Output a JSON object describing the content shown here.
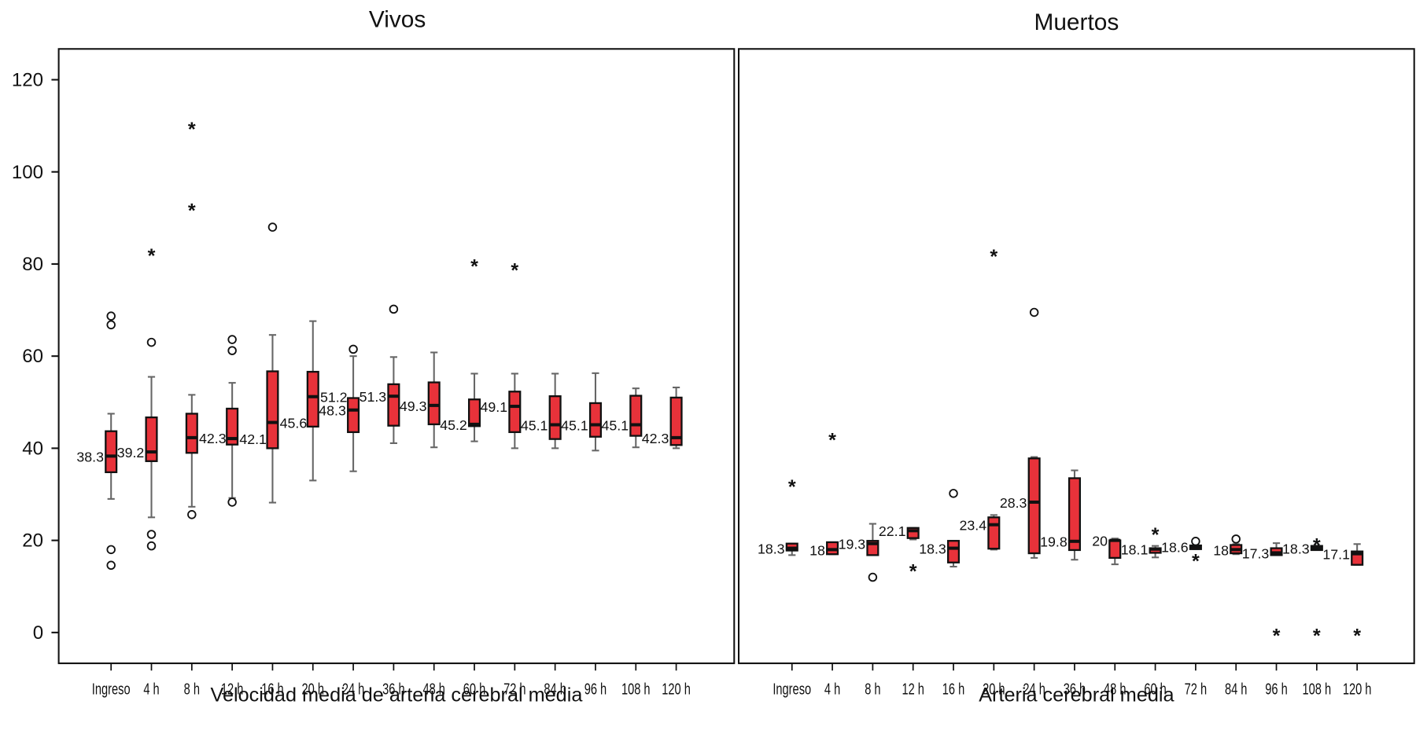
{
  "chart_data": [
    {
      "type": "box",
      "title": "Vivos",
      "xlabel": "Velocidad media de arteria cerebral media",
      "ylabel": "",
      "ylim": [
        -6,
        127
      ],
      "yticks": [
        0,
        20,
        40,
        60,
        80,
        100,
        120
      ],
      "grid": false,
      "box_color": "#e8323a",
      "categories": [
        "Ingreso",
        "4 h",
        "8 h",
        "12 h",
        "16 h",
        "20 h",
        "24 h",
        "36 h",
        "48 h",
        "60 h",
        "72 h",
        "84 h",
        "96 h",
        "108 h",
        "120 h"
      ],
      "boxes": [
        {
          "label": "38.3",
          "median": 38.3,
          "q1": 34.8,
          "q3": 43.7,
          "whisker_low": 29,
          "whisker_high": 47.5,
          "outliers_circle": [
            68.7,
            66.8,
            18,
            14.6
          ],
          "outliers_star": []
        },
        {
          "label": "39.2",
          "median": 39.2,
          "q1": 37.2,
          "q3": 46.7,
          "whisker_low": 25,
          "whisker_high": 55.5,
          "outliers_circle": [
            63,
            21.3,
            18.8
          ],
          "outliers_star": [
            82.5
          ]
        },
        {
          "label": "42.3",
          "median": 42.3,
          "q1": 39,
          "q3": 47.5,
          "whisker_low": 27.3,
          "whisker_high": 51.6,
          "outliers_circle": [
            25.6
          ],
          "outliers_star": [
            110,
            92.3
          ]
        },
        {
          "label": "42.1",
          "median": 42.1,
          "q1": 40.8,
          "q3": 48.6,
          "whisker_low": 29.2,
          "whisker_high": 54.2,
          "outliers_circle": [
            63.6,
            61.2,
            28.3
          ],
          "outliers_star": []
        },
        {
          "label": "45.6",
          "median": 45.6,
          "q1": 40,
          "q3": 56.7,
          "whisker_low": 28.2,
          "whisker_high": 64.6,
          "outliers_circle": [
            88
          ],
          "outliers_star": []
        },
        {
          "label": "51.2",
          "median": 51.2,
          "q1": 44.7,
          "q3": 56.6,
          "whisker_low": 33,
          "whisker_high": 67.6,
          "outliers_circle": [],
          "outliers_star": []
        },
        {
          "label": "48.3",
          "median": 48.3,
          "q1": 43.5,
          "q3": 50.9,
          "whisker_low": 35,
          "whisker_high": 60,
          "outliers_circle": [
            61.5
          ],
          "outliers_star": []
        },
        {
          "label": "51.3",
          "median": 51.3,
          "q1": 44.9,
          "q3": 53.9,
          "whisker_low": 41.1,
          "whisker_high": 59.8,
          "outliers_circle": [
            70.2
          ],
          "outliers_star": []
        },
        {
          "label": "49.3",
          "median": 49.3,
          "q1": 45.2,
          "q3": 54.3,
          "whisker_low": 40.2,
          "whisker_high": 60.8,
          "outliers_circle": [],
          "outliers_star": []
        },
        {
          "label": "45.2",
          "median": 45.2,
          "q1": 44.8,
          "q3": 50.6,
          "whisker_low": 41.5,
          "whisker_high": 56.2,
          "outliers_circle": [],
          "outliers_star": [
            80.2
          ]
        },
        {
          "label": "49.1",
          "median": 49.1,
          "q1": 43.5,
          "q3": 52.3,
          "whisker_low": 40,
          "whisker_high": 56.2,
          "outliers_circle": [],
          "outliers_star": [
            79.3
          ]
        },
        {
          "label": "45.1",
          "median": 45.1,
          "q1": 42,
          "q3": 51.3,
          "whisker_low": 40,
          "whisker_high": 56.2,
          "outliers_circle": [],
          "outliers_star": []
        },
        {
          "label": "45.1",
          "median": 45.1,
          "q1": 42.5,
          "q3": 49.8,
          "whisker_low": 39.5,
          "whisker_high": 56.3,
          "outliers_circle": [],
          "outliers_star": []
        },
        {
          "label": "45.1",
          "median": 45.1,
          "q1": 42.7,
          "q3": 51.4,
          "whisker_low": 40.2,
          "whisker_high": 53,
          "outliers_circle": [],
          "outliers_star": []
        },
        {
          "label": "42.3",
          "median": 42.3,
          "q1": 40.7,
          "q3": 51,
          "whisker_low": 40,
          "whisker_high": 53.2,
          "outliers_circle": [],
          "outliers_star": []
        }
      ],
      "median_labels_side": [
        "left",
        "left",
        "right",
        "right",
        "right",
        "right",
        "left",
        "left",
        "left",
        "left",
        "left",
        "left",
        "left",
        "left",
        "left"
      ]
    },
    {
      "type": "box",
      "title": "Muertos",
      "xlabel": "Arteria cerebral media",
      "ylabel": "",
      "ylim": [
        -6,
        127
      ],
      "yticks": [
        0,
        20,
        40,
        60,
        80,
        100,
        120
      ],
      "grid": false,
      "box_color": "#e8323a",
      "categories": [
        "Ingreso",
        "4 h",
        "8 h",
        "12 h",
        "16 h",
        "20 h",
        "24 h",
        "36 h",
        "48 h",
        "60 h",
        "72 h",
        "84 h",
        "96 h",
        "108 h",
        "120 h"
      ],
      "boxes": [
        {
          "label": "18.3",
          "median": 18.3,
          "q1": 17.8,
          "q3": 19.3,
          "whisker_low": 16.8,
          "whisker_high": 19.3,
          "outliers_circle": [],
          "outliers_star": [
            32.3
          ]
        },
        {
          "label": "18",
          "median": 18,
          "q1": 17,
          "q3": 19.6,
          "whisker_low": 17,
          "whisker_high": 19.6,
          "outliers_circle": [],
          "outliers_star": [
            42.5
          ]
        },
        {
          "label": "19.3",
          "median": 19.3,
          "q1": 16.8,
          "q3": 19.9,
          "whisker_low": 16.8,
          "whisker_high": 23.6,
          "outliers_circle": [
            12
          ],
          "outliers_star": []
        },
        {
          "label": "22.1",
          "median": 22.1,
          "q1": 20.5,
          "q3": 22.7,
          "whisker_low": 20.2,
          "whisker_high": 22.7,
          "outliers_circle": [],
          "outliers_star": [
            14
          ]
        },
        {
          "label": "18.3",
          "median": 18.3,
          "q1": 15.2,
          "q3": 19.9,
          "whisker_low": 14.3,
          "whisker_high": 19.9,
          "outliers_circle": [
            30.2
          ],
          "outliers_star": []
        },
        {
          "label": "23.4",
          "median": 23.4,
          "q1": 18.2,
          "q3": 25,
          "whisker_low": 18,
          "whisker_high": 25.5,
          "outliers_circle": [],
          "outliers_star": [
            82.3
          ]
        },
        {
          "label": "28.3",
          "median": 28.3,
          "q1": 17.2,
          "q3": 37.8,
          "whisker_low": 16.2,
          "whisker_high": 38.1,
          "outliers_circle": [
            69.5
          ],
          "outliers_star": []
        },
        {
          "label": "19.8",
          "median": 19.8,
          "q1": 17.9,
          "q3": 33.5,
          "whisker_low": 15.8,
          "whisker_high": 35.2,
          "outliers_circle": [],
          "outliers_star": []
        },
        {
          "label": "20",
          "median": 20,
          "q1": 16.2,
          "q3": 20,
          "whisker_low": 14.8,
          "whisker_high": 20.4,
          "outliers_circle": [],
          "outliers_star": []
        },
        {
          "label": "18.1",
          "median": 18.1,
          "q1": 17.3,
          "q3": 18.3,
          "whisker_low": 16.3,
          "whisker_high": 18.8,
          "outliers_circle": [],
          "outliers_star": [
            21.9
          ]
        },
        {
          "label": "18.6",
          "median": 18.6,
          "q1": 18.1,
          "q3": 18.9,
          "whisker_low": 18.1,
          "whisker_high": 18.9,
          "outliers_circle": [
            19.8
          ],
          "outliers_star": [
            16.2
          ]
        },
        {
          "label": "18",
          "median": 18,
          "q1": 17.2,
          "q3": 19,
          "whisker_low": 17,
          "whisker_high": 19.2,
          "outliers_circle": [
            20.3
          ],
          "outliers_star": []
        },
        {
          "label": "17.3",
          "median": 17.3,
          "q1": 16.8,
          "q3": 18.3,
          "whisker_low": 16.8,
          "whisker_high": 19.4,
          "outliers_circle": [],
          "outliers_star": [
            0
          ]
        },
        {
          "label": "18.3",
          "median": 18.3,
          "q1": 17.9,
          "q3": 18.8,
          "whisker_low": 17.9,
          "whisker_high": 18.8,
          "outliers_circle": [],
          "outliers_star": [
            19.6,
            0
          ]
        },
        {
          "label": "17.1",
          "median": 17.1,
          "q1": 14.7,
          "q3": 17.6,
          "whisker_low": 14.7,
          "whisker_high": 19.2,
          "outliers_circle": [],
          "outliers_star": [
            0
          ]
        }
      ],
      "median_labels_side": [
        "left",
        "left",
        "left",
        "left",
        "left",
        "left",
        "left",
        "left",
        "left",
        "left",
        "left",
        "left",
        "left",
        "left",
        "left"
      ]
    }
  ]
}
